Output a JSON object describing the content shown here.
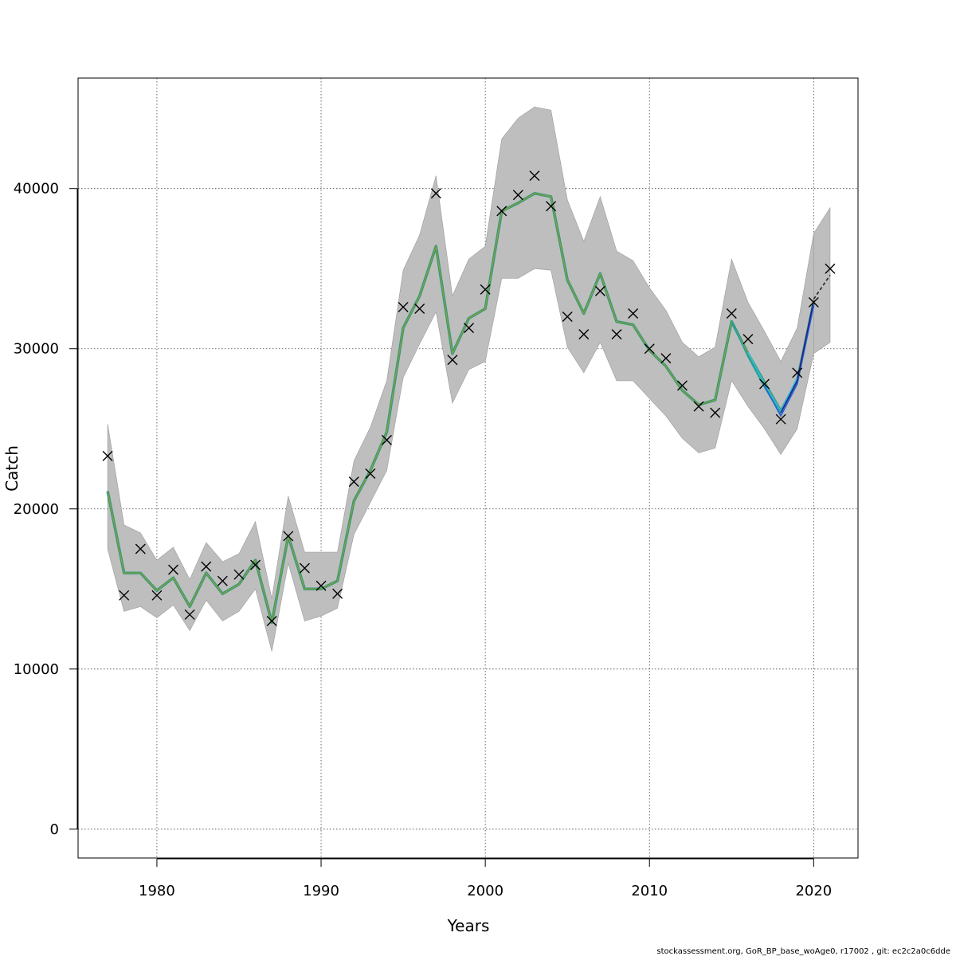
{
  "chart_data": {
    "type": "line",
    "title": "",
    "xlabel": "Years",
    "ylabel": "Catch",
    "xlim": [
      1975.2,
      2022.7
    ],
    "ylim": [
      -1800,
      46900
    ],
    "x_ticks": [
      1980,
      1990,
      2000,
      2010,
      2020
    ],
    "y_ticks": [
      0,
      10000,
      20000,
      30000,
      40000
    ],
    "x_tick_labels": [
      "1980",
      "1990",
      "2000",
      "2010",
      "2020"
    ],
    "y_tick_labels": [
      "0",
      "10000",
      "20000",
      "30000",
      "40000"
    ],
    "grid": true,
    "footer": "stockassessment.org, GoR_BP_base_woAge0, r17002 , git: ec2c2a0c6dde",
    "years": [
      1977,
      1978,
      1979,
      1980,
      1981,
      1982,
      1983,
      1984,
      1985,
      1986,
      1987,
      1988,
      1989,
      1990,
      1991,
      1992,
      1993,
      1994,
      1995,
      1996,
      1997,
      1998,
      1999,
      2000,
      2001,
      2002,
      2003,
      2004,
      2005,
      2006,
      2007,
      2008,
      2009,
      2010,
      2011,
      2012,
      2013,
      2014,
      2015,
      2016,
      2017,
      2018,
      2019,
      2020
    ],
    "ci_band": {
      "color": "#bebebe",
      "lower": [
        17500,
        13600,
        13900,
        13200,
        14000,
        12400,
        14300,
        13000,
        13600,
        15000,
        11100,
        16600,
        13000,
        13300,
        13800,
        18400,
        20400,
        22400,
        28200,
        30300,
        32300,
        26600,
        28700,
        29200,
        34400,
        34400,
        35000,
        34900,
        30100,
        28500,
        30400,
        28000,
        28000,
        26900,
        25800,
        24400,
        23500,
        23800,
        28000,
        26400,
        25000,
        23400,
        25000,
        29700
      ],
      "upper": [
        25300,
        19000,
        18500,
        16800,
        17600,
        15600,
        17900,
        16700,
        17200,
        19200,
        14400,
        20800,
        17300,
        17300,
        17300,
        23000,
        25100,
        28000,
        34900,
        37100,
        40800,
        33300,
        35600,
        36400,
        43100,
        44400,
        45100,
        44900,
        39300,
        36700,
        39500,
        36100,
        35500,
        33800,
        32400,
        30400,
        29500,
        30100,
        35600,
        32900,
        31100,
        29200,
        31300,
        37200
      ]
    },
    "ci_band_2021": {
      "x": [
        2020,
        2021
      ],
      "lower": [
        29700,
        30400
      ],
      "upper": [
        37200,
        38800
      ]
    },
    "fit": [
      21100,
      16000,
      16000,
      14900,
      15700,
      13900,
      16000,
      14700,
      15300,
      16800,
      12900,
      18300,
      15000,
      15000,
      15500,
      20500,
      22400,
      24800,
      31300,
      33300,
      36400,
      29700,
      31900,
      32500,
      38600,
      39100,
      39700,
      39500,
      34300,
      32200,
      34700,
      31700,
      31500,
      29900,
      28900,
      27400,
      26500,
      26800,
      31700,
      29700,
      27900,
      26100,
      28000,
      32900
    ],
    "retro_series": [
      {
        "color": "#21a0a0",
        "values": {
          "2015": 31700,
          "2016": 29500,
          "2017": 27600,
          "2018": 25900
        }
      },
      {
        "color": "#22c0e0",
        "values": {
          "2016": 29800,
          "2017": 27800,
          "2018": 26100,
          "2019": 28200
        }
      },
      {
        "color": "#2860d8",
        "values": {
          "2017": 27700,
          "2018": 25800,
          "2019": 27800,
          "2020": 32700
        }
      },
      {
        "color": "#28208a",
        "values": {
          "2018": 26000,
          "2019": 28000,
          "2020": 33000
        }
      }
    ],
    "forecast": {
      "x": [
        2020,
        2021
      ],
      "values": [
        33100,
        34600
      ]
    },
    "observed": [
      [
        1977,
        23300
      ],
      [
        1978,
        14600
      ],
      [
        1979,
        17500
      ],
      [
        1980,
        14600
      ],
      [
        1981,
        16200
      ],
      [
        1982,
        13400
      ],
      [
        1983,
        16400
      ],
      [
        1984,
        15500
      ],
      [
        1985,
        15900
      ],
      [
        1986,
        16500
      ],
      [
        1987,
        13000
      ],
      [
        1988,
        18300
      ],
      [
        1989,
        16300
      ],
      [
        1990,
        15200
      ],
      [
        1991,
        14700
      ],
      [
        1992,
        21700
      ],
      [
        1993,
        22200
      ],
      [
        1994,
        24300
      ],
      [
        1995,
        32600
      ],
      [
        1996,
        32500
      ],
      [
        1997,
        39700
      ],
      [
        1998,
        29300
      ],
      [
        1999,
        31300
      ],
      [
        2000,
        33700
      ],
      [
        2001,
        38600
      ],
      [
        2002,
        39600
      ],
      [
        2003,
        40800
      ],
      [
        2004,
        38900
      ],
      [
        2005,
        32000
      ],
      [
        2006,
        30900
      ],
      [
        2007,
        33600
      ],
      [
        2008,
        30900
      ],
      [
        2009,
        32200
      ],
      [
        2010,
        30000
      ],
      [
        2011,
        29400
      ],
      [
        2012,
        27700
      ],
      [
        2013,
        26400
      ],
      [
        2014,
        26000
      ],
      [
        2015,
        32200
      ],
      [
        2016,
        30600
      ],
      [
        2017,
        27800
      ],
      [
        2018,
        25600
      ],
      [
        2019,
        28500
      ],
      [
        2020,
        32900
      ],
      [
        2021,
        35000
      ]
    ]
  }
}
